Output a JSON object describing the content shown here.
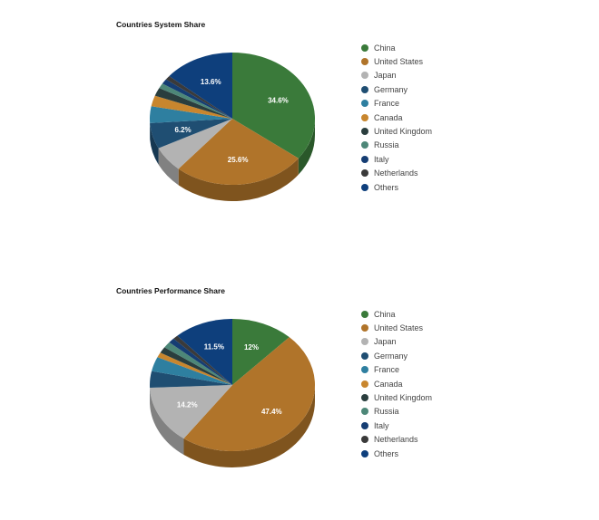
{
  "colors": {
    "China": "#3a7a3a",
    "United States": "#b0742a",
    "Japan": "#b3b3b3",
    "Germany": "#1f4e72",
    "France": "#2e7fa0",
    "Canada": "#c8862e",
    "United Kingdom": "#2a3e3e",
    "Russia": "#4d8778",
    "Italy": "#153d73",
    "Netherlands": "#3a3a3a",
    "Others": "#0e3f7c"
  },
  "chart_data": [
    {
      "type": "pie",
      "title": "Countries System Share",
      "categories": [
        "China",
        "United States",
        "Japan",
        "Germany",
        "France",
        "Canada",
        "United Kingdom",
        "Russia",
        "Italy",
        "Netherlands",
        "Others"
      ],
      "values": [
        34.6,
        25.6,
        6.2,
        6.2,
        4.0,
        2.6,
        2.0,
        1.2,
        1.2,
        1.0,
        13.6
      ],
      "data_labels": [
        "34.6%",
        "25.6%",
        "",
        "6.2%",
        "",
        "",
        "",
        "",
        "",
        "",
        "13.6%"
      ],
      "legend": "right"
    },
    {
      "type": "pie",
      "title": "Countries Performance Share",
      "categories": [
        "China",
        "United States",
        "Japan",
        "Germany",
        "France",
        "Canada",
        "United Kingdom",
        "Russia",
        "Italy",
        "Netherlands",
        "Others"
      ],
      "values": [
        12.0,
        47.4,
        14.2,
        4.0,
        3.5,
        1.2,
        1.5,
        1.5,
        1.2,
        1.0,
        11.5
      ],
      "data_labels": [
        "12%",
        "47.4%",
        "14.2%",
        "",
        "",
        "",
        "",
        "",
        "",
        "",
        "11.5%"
      ],
      "legend": "right"
    }
  ]
}
